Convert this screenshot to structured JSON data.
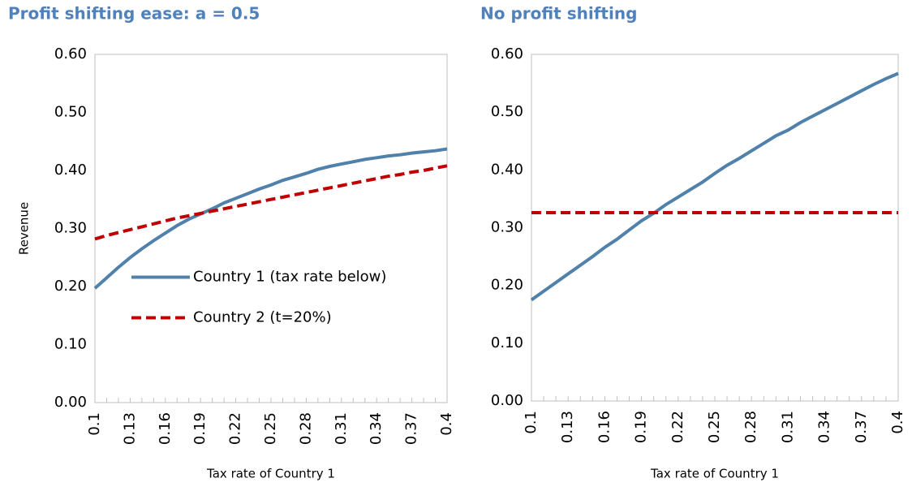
{
  "chart_data": [
    {
      "type": "line",
      "title": "Profit shifting ease: a = 0.5",
      "x_label": "Tax rate of Country 1",
      "y_label": "Revenue",
      "categories": [
        "0.1",
        null,
        null,
        "0.13",
        null,
        null,
        "0.16",
        null,
        null,
        "0.19",
        null,
        null,
        "0.22",
        null,
        null,
        "0.25",
        null,
        null,
        "0.28",
        null,
        null,
        "0.31",
        null,
        null,
        "0.34",
        null,
        null,
        "0.37",
        null,
        null,
        "0.4"
      ],
      "series": [
        {
          "name": "Country 1 (tax rate below)",
          "color": "#4f81ab",
          "style": "solid",
          "values": [
            0.197,
            0.215,
            0.233,
            0.25,
            0.265,
            0.279,
            0.292,
            0.305,
            0.316,
            0.325,
            0.334,
            0.344,
            0.352,
            0.36,
            0.368,
            0.375,
            0.383,
            0.389,
            0.395,
            0.402,
            0.407,
            0.411,
            0.415,
            0.419,
            0.422,
            0.425,
            0.427,
            0.43,
            0.432,
            0.434,
            0.437
          ]
        },
        {
          "name": "Country 2 (t=20%)",
          "color": "#c00000",
          "style": "dashed",
          "values": [
            0.282,
            0.288,
            0.293,
            0.298,
            0.303,
            0.308,
            0.313,
            0.318,
            0.322,
            0.326,
            0.33,
            0.334,
            0.338,
            0.342,
            0.346,
            0.35,
            0.354,
            0.358,
            0.362,
            0.366,
            0.37,
            0.374,
            0.378,
            0.382,
            0.386,
            0.39,
            0.393,
            0.397,
            0.4,
            0.404,
            0.408
          ]
        }
      ],
      "ylim": [
        0,
        0.6
      ],
      "yticks": [
        {
          "value": 0,
          "label": "0.00"
        },
        {
          "value": 0.1,
          "label": "0.10"
        },
        {
          "value": 0.2,
          "label": "0.20"
        },
        {
          "value": 0.3,
          "label": "0.30"
        },
        {
          "value": 0.4,
          "label": "0.40"
        },
        {
          "value": 0.5,
          "label": "0.50"
        },
        {
          "value": 0.6,
          "label": "0.60"
        }
      ],
      "legend": "center"
    },
    {
      "type": "line",
      "title": "No profit shifting",
      "x_label": "Tax rate of Country 1",
      "categories": [
        "0.1",
        null,
        null,
        "0.13",
        null,
        null,
        "0.16",
        null,
        null,
        "0.19",
        null,
        null,
        "0.22",
        null,
        null,
        "0.25",
        null,
        null,
        "0.28",
        null,
        null,
        "0.31",
        null,
        null,
        "0.34",
        null,
        null,
        "0.37",
        null,
        null,
        "0.4"
      ],
      "series": [
        {
          "color": "#4f81ab",
          "style": "solid",
          "values": [
            0.175,
            0.19,
            0.205,
            0.22,
            0.235,
            0.25,
            0.266,
            0.28,
            0.296,
            0.312,
            0.325,
            0.34,
            0.353,
            0.366,
            0.379,
            0.394,
            0.408,
            0.42,
            0.433,
            0.446,
            0.459,
            0.469,
            0.482,
            0.493,
            0.504,
            0.515,
            0.526,
            0.537,
            0.548,
            0.558,
            0.567
          ]
        },
        {
          "color": "#c00000",
          "style": "dashed",
          "values": [
            0.326,
            0.326,
            0.326,
            0.326,
            0.326,
            0.326,
            0.326,
            0.326,
            0.326,
            0.326,
            0.326,
            0.326,
            0.326,
            0.326,
            0.326,
            0.326,
            0.326,
            0.326,
            0.326,
            0.326,
            0.326,
            0.326,
            0.326,
            0.326,
            0.326,
            0.326,
            0.326,
            0.326,
            0.326,
            0.326,
            0.326
          ]
        }
      ],
      "ylim": [
        0,
        0.6
      ],
      "yticks": [
        {
          "value": 0,
          "label": "0.00"
        },
        {
          "value": 0.1,
          "label": "0.10"
        },
        {
          "value": 0.2,
          "label": "0.20"
        },
        {
          "value": 0.3,
          "label": "0.30"
        },
        {
          "value": 0.4,
          "label": "0.40"
        },
        {
          "value": 0.5,
          "label": "0.50"
        },
        {
          "value": 0.6,
          "label": "0.60"
        }
      ]
    }
  ]
}
